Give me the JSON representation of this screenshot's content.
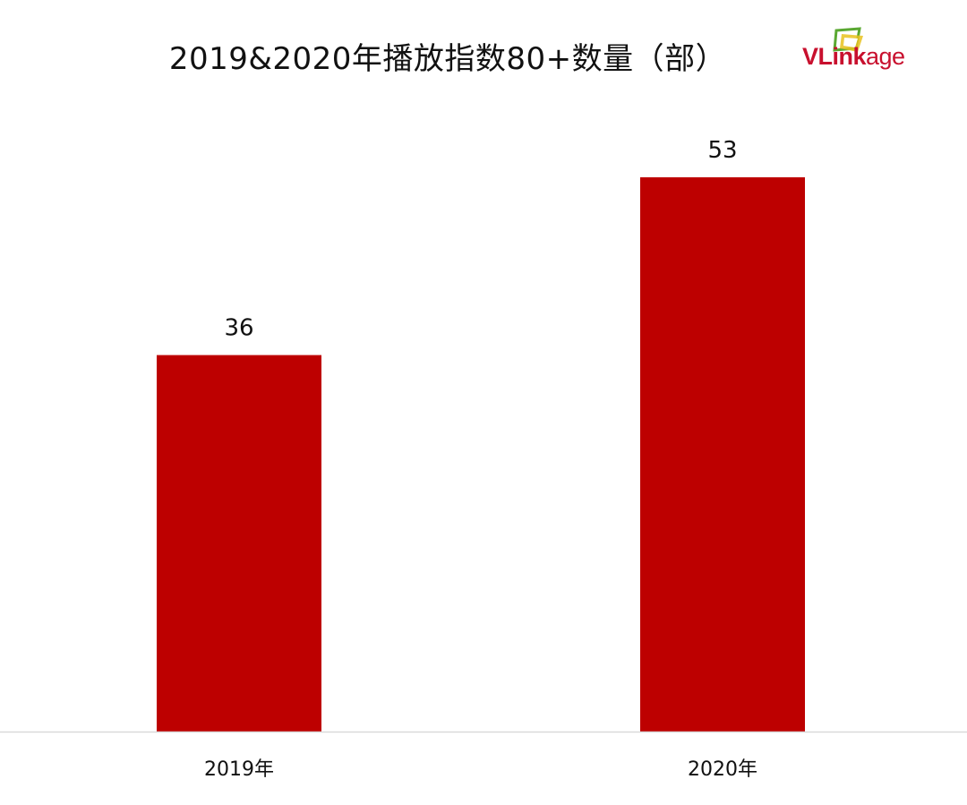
{
  "logo": {
    "text_strong": "VLink",
    "text_light": "age",
    "icon": "vlinkage-logo-icon"
  },
  "colors": {
    "bar": "#bd0000",
    "axis": "#d9d9d9",
    "text": "#111111",
    "logo_red": "#c8102e",
    "logo_green": "#5aa832",
    "logo_yellow": "#e8c21e"
  },
  "chart_data": {
    "type": "bar",
    "title": "2019&2020年播放指数80+数量（部）",
    "categories": [
      "2019年",
      "2020年"
    ],
    "values": [
      36,
      53
    ],
    "data_labels": [
      "36",
      "53"
    ],
    "xlabel": "",
    "ylabel": "",
    "ylim": [
      0,
      53
    ],
    "grid": false,
    "legend": "none"
  }
}
